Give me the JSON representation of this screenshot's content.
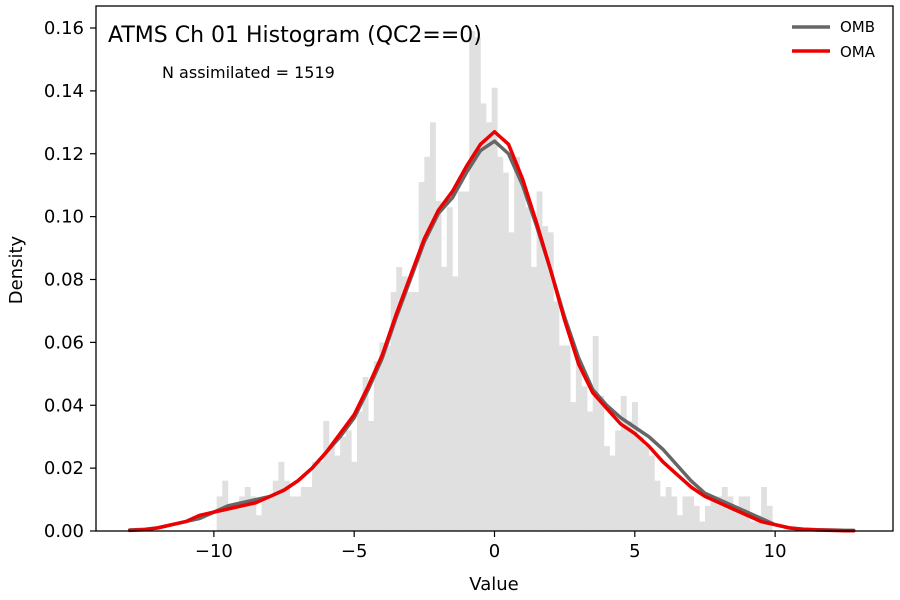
{
  "chart_data": {
    "type": "bar",
    "title": "ATMS Ch 01 Histogram (QC2==0)",
    "annotation": "N assimilated = 1519",
    "xlabel": "Value",
    "ylabel": "Density",
    "xlim": [
      -14.2,
      14.2
    ],
    "ylim": [
      0,
      0.167
    ],
    "xticks": [
      -10,
      -5,
      0,
      5,
      10
    ],
    "xtick_labels": [
      "−10",
      "−5",
      "0",
      "5",
      "10"
    ],
    "yticks": [
      0,
      0.02,
      0.04,
      0.06,
      0.08,
      0.1,
      0.12,
      0.14,
      0.16
    ],
    "ytick_labels": [
      "0.00",
      "0.02",
      "0.04",
      "0.06",
      "0.08",
      "0.10",
      "0.12",
      "0.14",
      "0.16"
    ],
    "legend_position": "top-right",
    "histogram": {
      "color": "#e0e0e0",
      "bins": [
        [
          -9.9,
          -9.7,
          0.011
        ],
        [
          -9.7,
          -9.5,
          0.016
        ],
        [
          -9.5,
          -9.3,
          0.008
        ],
        [
          -9.3,
          -9.1,
          0.008
        ],
        [
          -9.1,
          -8.9,
          0.011
        ],
        [
          -8.9,
          -8.7,
          0.014
        ],
        [
          -8.7,
          -8.5,
          0.011
        ],
        [
          -8.5,
          -8.3,
          0.005
        ],
        [
          -8.3,
          -8.1,
          0.011
        ],
        [
          -8.1,
          -7.9,
          0.011
        ],
        [
          -7.9,
          -7.7,
          0.016
        ],
        [
          -7.7,
          -7.5,
          0.022
        ],
        [
          -7.5,
          -7.3,
          0.016
        ],
        [
          -7.3,
          -7.1,
          0.011
        ],
        [
          -7.1,
          -6.9,
          0.011
        ],
        [
          -6.9,
          -6.7,
          0.014
        ],
        [
          -6.7,
          -6.5,
          0.014
        ],
        [
          -6.5,
          -6.3,
          0.022
        ],
        [
          -6.3,
          -6.1,
          0.022
        ],
        [
          -6.1,
          -5.9,
          0.035
        ],
        [
          -5.9,
          -5.7,
          0.027
        ],
        [
          -5.7,
          -5.5,
          0.024
        ],
        [
          -5.5,
          -5.3,
          0.03
        ],
        [
          -5.3,
          -5.1,
          0.032
        ],
        [
          -5.1,
          -4.9,
          0.022
        ],
        [
          -4.9,
          -4.7,
          0.038
        ],
        [
          -4.7,
          -4.5,
          0.049
        ],
        [
          -4.5,
          -4.3,
          0.035
        ],
        [
          -4.3,
          -4.1,
          0.054
        ],
        [
          -4.1,
          -3.9,
          0.06
        ],
        [
          -3.9,
          -3.7,
          0.059
        ],
        [
          -3.7,
          -3.5,
          0.076
        ],
        [
          -3.5,
          -3.3,
          0.084
        ],
        [
          -3.3,
          -3.1,
          0.081
        ],
        [
          -3.1,
          -2.9,
          0.076
        ],
        [
          -2.9,
          -2.7,
          0.076
        ],
        [
          -2.7,
          -2.5,
          0.111
        ],
        [
          -2.5,
          -2.3,
          0.119
        ],
        [
          -2.3,
          -2.1,
          0.13
        ],
        [
          -2.1,
          -1.9,
          0.105
        ],
        [
          -1.9,
          -1.7,
          0.084
        ],
        [
          -1.7,
          -1.5,
          0.103
        ],
        [
          -1.5,
          -1.3,
          0.081
        ],
        [
          -1.3,
          -1.1,
          0.108
        ],
        [
          -1.1,
          -0.9,
          0.108
        ],
        [
          -0.9,
          -0.7,
          0.159
        ],
        [
          -0.7,
          -0.5,
          0.157
        ],
        [
          -0.5,
          -0.3,
          0.136
        ],
        [
          -0.3,
          -0.1,
          0.13
        ],
        [
          -0.1,
          0.1,
          0.141
        ],
        [
          0.1,
          0.3,
          0.119
        ],
        [
          0.3,
          0.5,
          0.114
        ],
        [
          0.5,
          0.7,
          0.095
        ],
        [
          0.7,
          0.9,
          0.119
        ],
        [
          0.9,
          1.1,
          0.111
        ],
        [
          1.1,
          1.3,
          0.103
        ],
        [
          1.3,
          1.5,
          0.084
        ],
        [
          1.5,
          1.7,
          0.108
        ],
        [
          1.7,
          1.9,
          0.097
        ],
        [
          1.9,
          2.1,
          0.095
        ],
        [
          2.1,
          2.3,
          0.073
        ],
        [
          2.3,
          2.5,
          0.059
        ],
        [
          2.5,
          2.7,
          0.059
        ],
        [
          2.7,
          2.9,
          0.041
        ],
        [
          2.9,
          3.1,
          0.054
        ],
        [
          3.1,
          3.3,
          0.046
        ],
        [
          3.3,
          3.5,
          0.038
        ],
        [
          3.5,
          3.7,
          0.062
        ],
        [
          3.7,
          3.9,
          0.043
        ],
        [
          3.9,
          4.1,
          0.027
        ],
        [
          4.1,
          4.3,
          0.024
        ],
        [
          4.3,
          4.5,
          0.032
        ],
        [
          4.5,
          4.7,
          0.043
        ],
        [
          4.7,
          4.9,
          0.035
        ],
        [
          4.9,
          5.1,
          0.041
        ],
        [
          5.1,
          5.3,
          0.03
        ],
        [
          5.3,
          5.5,
          0.027
        ],
        [
          5.5,
          5.7,
          0.024
        ],
        [
          5.7,
          5.9,
          0.016
        ],
        [
          5.9,
          6.1,
          0.011
        ],
        [
          6.1,
          6.3,
          0.014
        ],
        [
          6.3,
          6.5,
          0.011
        ],
        [
          6.5,
          6.7,
          0.005
        ],
        [
          6.7,
          6.9,
          0.011
        ],
        [
          6.9,
          7.1,
          0.011
        ],
        [
          7.1,
          7.3,
          0.008
        ],
        [
          7.3,
          7.5,
          0.003
        ],
        [
          7.5,
          7.7,
          0.008
        ],
        [
          7.7,
          7.9,
          0.011
        ],
        [
          7.9,
          8.1,
          0.011
        ],
        [
          8.1,
          8.3,
          0.014
        ],
        [
          8.3,
          8.5,
          0.011
        ],
        [
          8.5,
          8.7,
          0.008
        ],
        [
          8.7,
          8.9,
          0.011
        ],
        [
          8.9,
          9.1,
          0.011
        ],
        [
          9.1,
          9.3,
          0.003
        ],
        [
          9.3,
          9.5,
          0.005
        ],
        [
          9.5,
          9.7,
          0.014
        ],
        [
          9.7,
          9.9,
          0.008
        ]
      ]
    },
    "series": [
      {
        "name": "OMB",
        "color": "#666666",
        "x": [
          -13,
          -12.5,
          -12,
          -11.5,
          -11,
          -10.5,
          -10,
          -9.5,
          -9,
          -8.5,
          -8,
          -7.5,
          -7,
          -6.5,
          -6,
          -5.5,
          -5,
          -4.5,
          -4,
          -3.5,
          -3,
          -2.5,
          -2,
          -1.5,
          -1,
          -0.5,
          0,
          0.5,
          1,
          1.5,
          2,
          2.5,
          3,
          3.5,
          4,
          4.5,
          5,
          5.5,
          6,
          6.5,
          7,
          7.5,
          8,
          8.5,
          9,
          9.5,
          10,
          10.5,
          11,
          11.5,
          12,
          12.5,
          12.8
        ],
        "y": [
          0.0003,
          0.0005,
          0.001,
          0.002,
          0.003,
          0.004,
          0.006,
          0.008,
          0.009,
          0.01,
          0.011,
          0.013,
          0.016,
          0.02,
          0.025,
          0.03,
          0.036,
          0.045,
          0.055,
          0.068,
          0.08,
          0.092,
          0.101,
          0.106,
          0.114,
          0.121,
          0.124,
          0.12,
          0.11,
          0.097,
          0.083,
          0.068,
          0.055,
          0.045,
          0.04,
          0.036,
          0.033,
          0.03,
          0.026,
          0.021,
          0.016,
          0.012,
          0.01,
          0.008,
          0.006,
          0.004,
          0.002,
          0.001,
          0.0006,
          0.0004,
          0.0003,
          0.0002,
          0.0002
        ]
      },
      {
        "name": "OMA",
        "color": "#ee0000",
        "x": [
          -13,
          -12.5,
          -12,
          -11.5,
          -11,
          -10.5,
          -10,
          -9.5,
          -9,
          -8.5,
          -8,
          -7.5,
          -7,
          -6.5,
          -6,
          -5.5,
          -5,
          -4.5,
          -4,
          -3.5,
          -3,
          -2.5,
          -2,
          -1.5,
          -1,
          -0.5,
          0,
          0.5,
          1,
          1.5,
          2,
          2.5,
          3,
          3.5,
          4,
          4.5,
          5,
          5.5,
          6,
          6.5,
          7,
          7.5,
          8,
          8.5,
          9,
          9.5,
          10,
          10.5,
          11,
          11.5,
          12,
          12.5,
          12.8
        ],
        "y": [
          0.0002,
          0.0004,
          0.001,
          0.002,
          0.003,
          0.005,
          0.006,
          0.007,
          0.008,
          0.009,
          0.011,
          0.013,
          0.016,
          0.02,
          0.025,
          0.031,
          0.037,
          0.046,
          0.056,
          0.069,
          0.081,
          0.093,
          0.102,
          0.108,
          0.116,
          0.123,
          0.127,
          0.123,
          0.112,
          0.098,
          0.083,
          0.067,
          0.053,
          0.044,
          0.039,
          0.034,
          0.031,
          0.027,
          0.022,
          0.018,
          0.014,
          0.011,
          0.009,
          0.007,
          0.005,
          0.003,
          0.002,
          0.001,
          0.0005,
          0.0003,
          0.0002,
          0.0001,
          0.0001
        ]
      }
    ]
  }
}
